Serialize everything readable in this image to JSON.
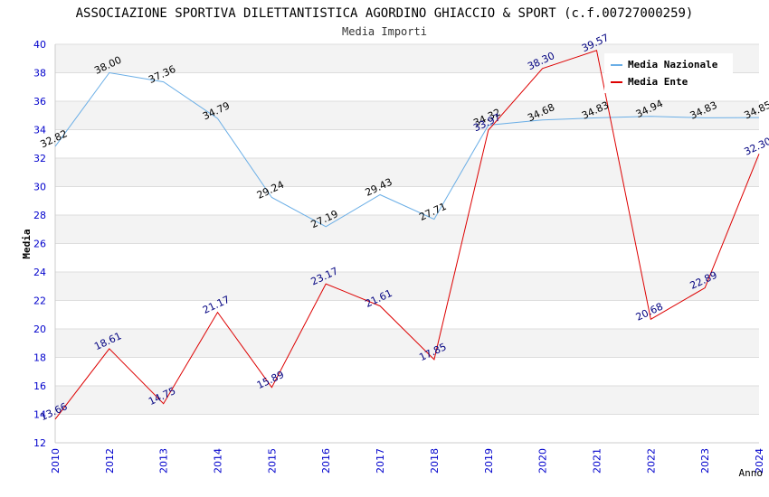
{
  "chart_data": {
    "type": "line",
    "title": "ASSOCIAZIONE SPORTIVA DILETTANTISTICA AGORDINO GHIACCIO & SPORT (c.f.00727000259)",
    "subtitle": "Media Importi",
    "xlabel": "Anno",
    "ylabel": "Media",
    "ylim": [
      12,
      40
    ],
    "yticks": [
      12,
      14,
      16,
      18,
      20,
      22,
      24,
      26,
      28,
      30,
      32,
      34,
      36,
      38,
      40
    ],
    "x": [
      "2010",
      "2012",
      "2013",
      "2014",
      "2015",
      "2016",
      "2017",
      "2018",
      "2019",
      "2020",
      "2021",
      "2022",
      "2023",
      "2024"
    ],
    "legend_position": "top-right",
    "grid": true,
    "series": [
      {
        "name": "Media Nazionale",
        "color": "#6aaee6",
        "label_color": "#000000",
        "values": [
          32.82,
          38.0,
          37.36,
          34.79,
          29.24,
          27.19,
          29.43,
          27.71,
          34.32,
          34.68,
          34.83,
          34.94,
          34.83,
          34.85
        ],
        "labels": [
          "32.82",
          "38.00",
          "37.36",
          "34.79",
          "29.24",
          "27.19",
          "29.43",
          "27.71",
          "34.32",
          "34.68",
          "34.83",
          "34.94",
          "34.83",
          "34.85"
        ]
      },
      {
        "name": "Media Ente",
        "color": "#dd0000",
        "label_color": "#000080",
        "values": [
          13.66,
          18.61,
          14.75,
          21.17,
          15.89,
          23.17,
          21.61,
          17.85,
          33.97,
          38.3,
          39.57,
          20.68,
          22.89,
          32.3
        ],
        "labels": [
          "13.66",
          "18.61",
          "14.75",
          "21.17",
          "15.89",
          "23.17",
          "21.61",
          "17.85",
          "33.97",
          "38.30",
          "39.57",
          "20.68",
          "22.89",
          "32.30"
        ]
      }
    ]
  }
}
